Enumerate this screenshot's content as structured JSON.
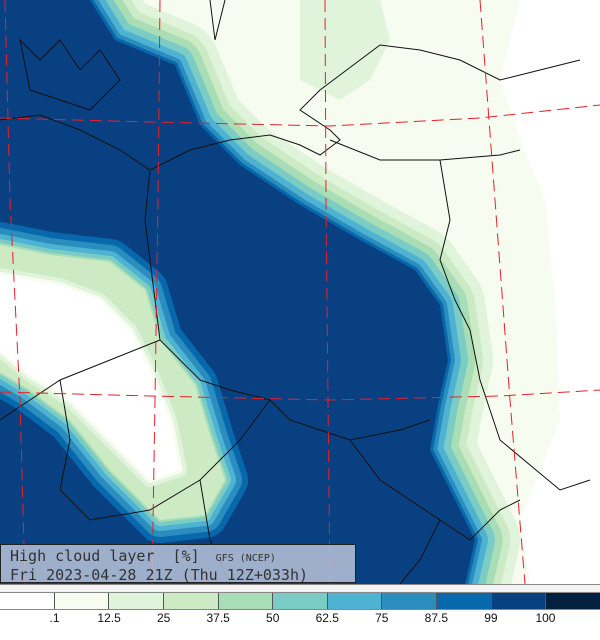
{
  "title": {
    "variable": "High cloud layer  [%]",
    "source": "GFS (NCEP)",
    "valid_time": "Fri 2023-04-28 21Z (Thu 12Z+033h)"
  },
  "legend": {
    "colors": [
      "#ffffff",
      "#f7fcf0",
      "#e0f3db",
      "#ccebc5",
      "#a8ddb5",
      "#7bccc4",
      "#4eb3d3",
      "#2b8cbe",
      "#0868ac",
      "#084081",
      "#03213f"
    ],
    "tick_labels": [
      ".1",
      "12.5",
      "25",
      "37.5",
      "50",
      "62.5",
      "75",
      "87.5",
      "99",
      "100"
    ]
  },
  "map": {
    "grid_line_color": "#e8202a",
    "border_color": "#111111"
  }
}
